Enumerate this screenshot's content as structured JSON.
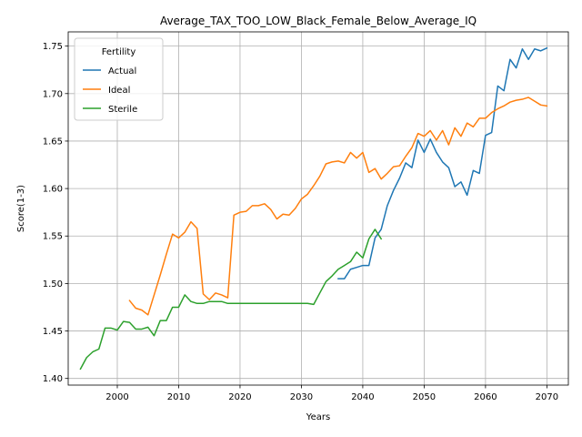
{
  "chart_data": {
    "type": "line",
    "title": "Average_TAX_TOO_LOW_Black_Female_Below_Average_IQ",
    "xlabel": "Years",
    "ylabel": "Score(1-3)",
    "xlim": [
      1992,
      2073.5
    ],
    "ylim": [
      1.393,
      1.765
    ],
    "xticks": [
      2000,
      2010,
      2020,
      2030,
      2040,
      2050,
      2060,
      2070
    ],
    "xtick_labels": [
      "2000",
      "2010",
      "2020",
      "2030",
      "2040",
      "2050",
      "2060",
      "2070"
    ],
    "yticks": [
      1.4,
      1.45,
      1.5,
      1.55,
      1.6,
      1.65,
      1.7,
      1.75
    ],
    "ytick_labels": [
      "1.40",
      "1.45",
      "1.50",
      "1.55",
      "1.60",
      "1.65",
      "1.70",
      "1.75"
    ],
    "grid": true,
    "legend": {
      "title": "Fertility",
      "placement": "top-left"
    },
    "series": [
      {
        "name": "Actual",
        "color": "#1f77b4",
        "x": [
          2036,
          2037,
          2038,
          2039,
          2040,
          2041,
          2042,
          2043,
          2044,
          2045,
          2046,
          2047,
          2048,
          2049,
          2050,
          2051,
          2052,
          2053,
          2054,
          2055,
          2056,
          2057,
          2058,
          2059,
          2060,
          2061,
          2062,
          2063,
          2064,
          2065,
          2066,
          2067,
          2068,
          2069,
          2070
        ],
        "y": [
          1.505,
          1.505,
          1.515,
          1.517,
          1.519,
          1.519,
          1.548,
          1.557,
          1.582,
          1.598,
          1.611,
          1.627,
          1.622,
          1.651,
          1.638,
          1.652,
          1.638,
          1.628,
          1.622,
          1.602,
          1.607,
          1.593,
          1.619,
          1.616,
          1.656,
          1.659,
          1.708,
          1.703,
          1.736,
          1.727,
          1.747,
          1.736,
          1.747,
          1.745,
          1.748
        ]
      },
      {
        "name": "Ideal",
        "color": "#ff7f0e",
        "x": [
          2002,
          2003,
          2004,
          2005,
          2006,
          2007,
          2008,
          2009,
          2010,
          2011,
          2012,
          2013,
          2014,
          2015,
          2016,
          2017,
          2018,
          2019,
          2020,
          2021,
          2022,
          2023,
          2024,
          2025,
          2026,
          2027,
          2028,
          2029,
          2030,
          2031,
          2032,
          2033,
          2034,
          2035,
          2036,
          2037,
          2038,
          2039,
          2040,
          2041,
          2042,
          2043,
          2044,
          2045,
          2046,
          2047,
          2048,
          2049,
          2050,
          2051,
          2052,
          2053,
          2054,
          2055,
          2056,
          2057,
          2058,
          2059,
          2060,
          2061,
          2062,
          2063,
          2064,
          2065,
          2066,
          2067,
          2068,
          2069,
          2070
        ],
        "y": [
          1.482,
          1.474,
          1.472,
          1.467,
          1.488,
          1.509,
          1.531,
          1.552,
          1.548,
          1.554,
          1.565,
          1.558,
          1.489,
          1.483,
          1.49,
          1.488,
          1.485,
          1.572,
          1.575,
          1.576,
          1.582,
          1.582,
          1.584,
          1.578,
          1.568,
          1.573,
          1.572,
          1.579,
          1.589,
          1.594,
          1.603,
          1.613,
          1.626,
          1.628,
          1.629,
          1.627,
          1.638,
          1.632,
          1.638,
          1.617,
          1.621,
          1.61,
          1.616,
          1.623,
          1.624,
          1.634,
          1.643,
          1.658,
          1.655,
          1.661,
          1.651,
          1.661,
          1.646,
          1.664,
          1.655,
          1.669,
          1.665,
          1.674,
          1.674,
          1.68,
          1.684,
          1.687,
          1.691,
          1.693,
          1.694,
          1.696,
          1.692,
          1.688,
          1.687
        ]
      },
      {
        "name": "Sterile",
        "color": "#2ca02c",
        "x": [
          1994,
          1995,
          1996,
          1997,
          1998,
          1999,
          2000,
          2001,
          2002,
          2003,
          2004,
          2005,
          2006,
          2007,
          2008,
          2009,
          2010,
          2011,
          2012,
          2013,
          2014,
          2015,
          2016,
          2017,
          2018,
          2019,
          2020,
          2021,
          2022,
          2023,
          2024,
          2025,
          2026,
          2027,
          2028,
          2029,
          2030,
          2031,
          2032,
          2033,
          2034,
          2035,
          2036,
          2037,
          2038,
          2039,
          2040,
          2041,
          2042,
          2043
        ],
        "y": [
          1.41,
          1.422,
          1.428,
          1.431,
          1.453,
          1.453,
          1.451,
          1.46,
          1.459,
          1.452,
          1.452,
          1.454,
          1.445,
          1.461,
          1.461,
          1.475,
          1.475,
          1.488,
          1.481,
          1.479,
          1.479,
          1.481,
          1.481,
          1.481,
          1.479,
          1.479,
          1.479,
          1.479,
          1.479,
          1.479,
          1.479,
          1.479,
          1.479,
          1.479,
          1.479,
          1.479,
          1.479,
          1.479,
          1.478,
          1.49,
          1.502,
          1.508,
          1.515,
          1.519,
          1.523,
          1.533,
          1.527,
          1.547,
          1.557,
          1.547
        ]
      }
    ]
  }
}
